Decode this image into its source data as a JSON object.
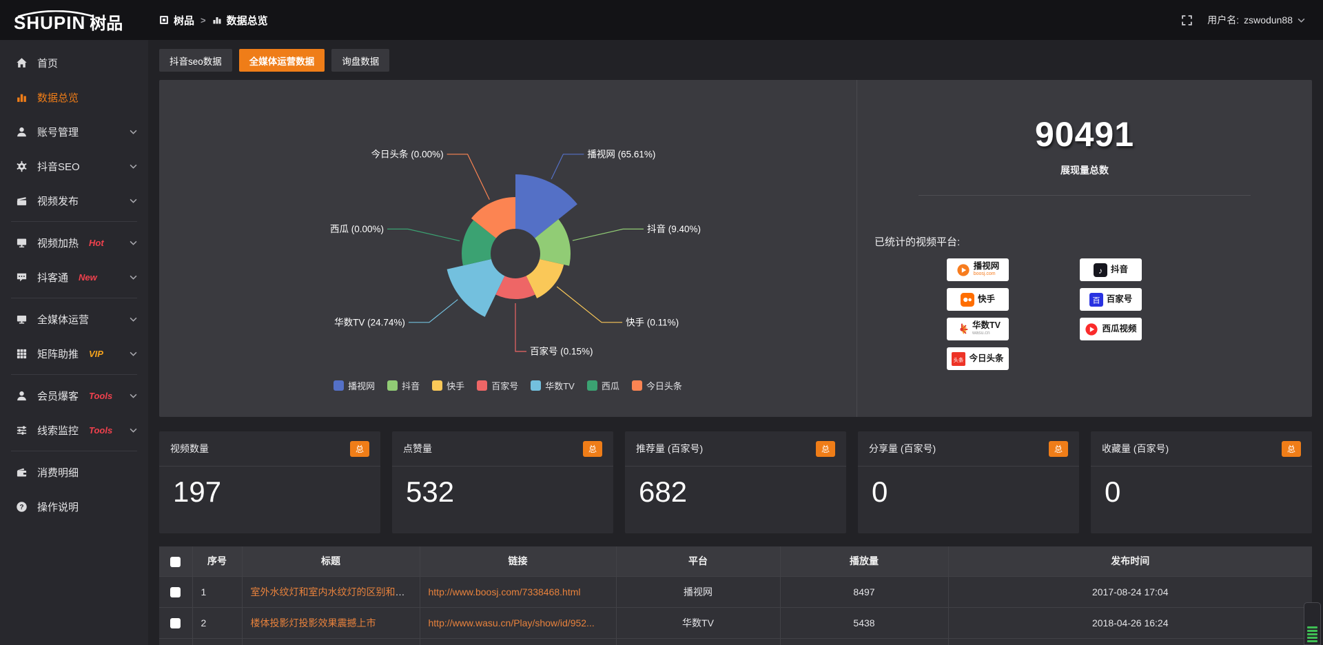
{
  "header": {
    "logo_text": "SHUPIN",
    "logo_suffix": "树品",
    "breadcrumb": {
      "root": "树品",
      "separator": ">",
      "current": "数据总览"
    },
    "user_label": "用户名:",
    "username": "zswodun88"
  },
  "sidebar": {
    "items": [
      {
        "icon": "home",
        "label": "首页",
        "active": false,
        "chevron": false,
        "badge": null,
        "divider_after": false
      },
      {
        "icon": "bar-chart",
        "label": "数据总览",
        "active": true,
        "chevron": false,
        "badge": null,
        "divider_after": false
      },
      {
        "icon": "user",
        "label": "账号管理",
        "active": false,
        "chevron": true,
        "badge": null,
        "divider_after": false
      },
      {
        "icon": "gear",
        "label": "抖音SEO",
        "active": false,
        "chevron": true,
        "badge": null,
        "divider_after": false
      },
      {
        "icon": "video-publish",
        "label": "视频发布",
        "active": false,
        "chevron": true,
        "badge": null,
        "divider_after": true
      },
      {
        "icon": "monitor-play",
        "label": "视频加热",
        "active": false,
        "chevron": true,
        "badge": {
          "text": "Hot",
          "color": "#f0414d"
        },
        "divider_after": false
      },
      {
        "icon": "chat",
        "label": "抖客通",
        "active": false,
        "chevron": true,
        "badge": {
          "text": "New",
          "color": "#f0414d"
        },
        "divider_after": true
      },
      {
        "icon": "monitor",
        "label": "全媒体运营",
        "active": false,
        "chevron": true,
        "badge": null,
        "divider_after": false
      },
      {
        "icon": "grid",
        "label": "矩阵助推",
        "active": false,
        "chevron": true,
        "badge": {
          "text": "VIP",
          "color": "#f5a31d"
        },
        "divider_after": true
      },
      {
        "icon": "user-star",
        "label": "会员爆客",
        "active": false,
        "chevron": true,
        "badge": {
          "text": "Tools",
          "color": "#f0414d"
        },
        "divider_after": false
      },
      {
        "icon": "sliders",
        "label": "线索监控",
        "active": false,
        "chevron": true,
        "badge": {
          "text": "Tools",
          "color": "#f0414d"
        },
        "divider_after": true
      },
      {
        "icon": "wallet",
        "label": "消费明细",
        "active": false,
        "chevron": false,
        "badge": null,
        "divider_after": false
      },
      {
        "icon": "question",
        "label": "操作说明",
        "active": false,
        "chevron": false,
        "badge": null,
        "divider_after": false
      }
    ]
  },
  "tabs": [
    {
      "id": "douyin-seo-data",
      "label": "抖音seo数据",
      "active": false
    },
    {
      "id": "media-operation-data",
      "label": "全媒体运营数据",
      "active": true
    },
    {
      "id": "inquiry-data",
      "label": "询盘数据",
      "active": false
    }
  ],
  "chart_data": {
    "type": "pie",
    "subtype": "nightingale-rose",
    "equal_angles": true,
    "start_angle_deg": 0,
    "direction": "clockwise",
    "inner_radius": 36,
    "legend_position": "bottom",
    "label_format": "name (percent%)",
    "items": [
      {
        "name": "播视网",
        "percent": 65.61,
        "color": "#5470c6",
        "outer_radius": 115
      },
      {
        "name": "抖音",
        "percent": 9.4,
        "color": "#91cc75",
        "outer_radius": 80
      },
      {
        "name": "快手",
        "percent": 0.11,
        "color": "#fac858",
        "outer_radius": 72
      },
      {
        "name": "百家号",
        "percent": 0.15,
        "color": "#ee6666",
        "outer_radius": 66
      },
      {
        "name": "华数TV",
        "percent": 24.74,
        "color": "#73c0de",
        "outer_radius": 102
      },
      {
        "name": "西瓜",
        "percent": 0,
        "color": "#3ba272",
        "outer_radius": 78
      },
      {
        "name": "今日头条",
        "percent": 0,
        "color": "#fc8452",
        "outer_radius": 82
      }
    ],
    "title": "展现量总数",
    "total_value": "90491"
  },
  "summary": {
    "total_value": "90491",
    "total_label": "展现量总数",
    "platforms_title": "已统计的视频平台:",
    "platform_badges": [
      {
        "id": "boosj",
        "name": "播视网",
        "sub": "boosj.com"
      },
      {
        "id": "douyin",
        "name": "抖音",
        "sub": ""
      },
      {
        "id": "kuaishou",
        "name": "快手",
        "sub": ""
      },
      {
        "id": "baijiahao",
        "name": "百家号",
        "sub": ""
      },
      {
        "id": "wasu",
        "name": "华数TV",
        "sub": "wasu.cn"
      },
      {
        "id": "xigua",
        "name": "西瓜视频",
        "sub": ""
      },
      {
        "id": "toutiao",
        "name": "今日头条",
        "sub": ""
      }
    ]
  },
  "stat_cards": [
    {
      "label": "视频数量",
      "badge": "总",
      "value": "197"
    },
    {
      "label": "点赞量",
      "badge": "总",
      "value": "532"
    },
    {
      "label": "推荐量 (百家号)",
      "badge": "总",
      "value": "682"
    },
    {
      "label": "分享量 (百家号)",
      "badge": "总",
      "value": "0"
    },
    {
      "label": "收藏量 (百家号)",
      "badge": "总",
      "value": "0"
    }
  ],
  "table": {
    "headers": [
      "序号",
      "标题",
      "链接",
      "平台",
      "播放量",
      "发布时间"
    ],
    "rows": [
      {
        "index": "1",
        "title": "室外水纹灯和室内水纹灯的区别和简介",
        "link": "http://www.boosj.com/7338468.html",
        "platform": "播视网",
        "plays": "8497",
        "time": "2017-08-24 17:04"
      },
      {
        "index": "2",
        "title": "楼体投影灯投影效果震撼上市",
        "link": "http://www.wasu.cn/Play/show/id/952...",
        "platform": "华数TV",
        "plays": "5438",
        "time": "2018-04-26 16:24"
      }
    ]
  },
  "colors": {
    "accent_orange": "#ef7d18",
    "badge_red": "#f0414d",
    "badge_gold": "#f5a31d",
    "link_orange": "#e8823c",
    "card_bg": "#3a3a3f",
    "page_bg": "#222226",
    "sidebar_bg": "#28282d",
    "topbar_bg": "#131316"
  }
}
